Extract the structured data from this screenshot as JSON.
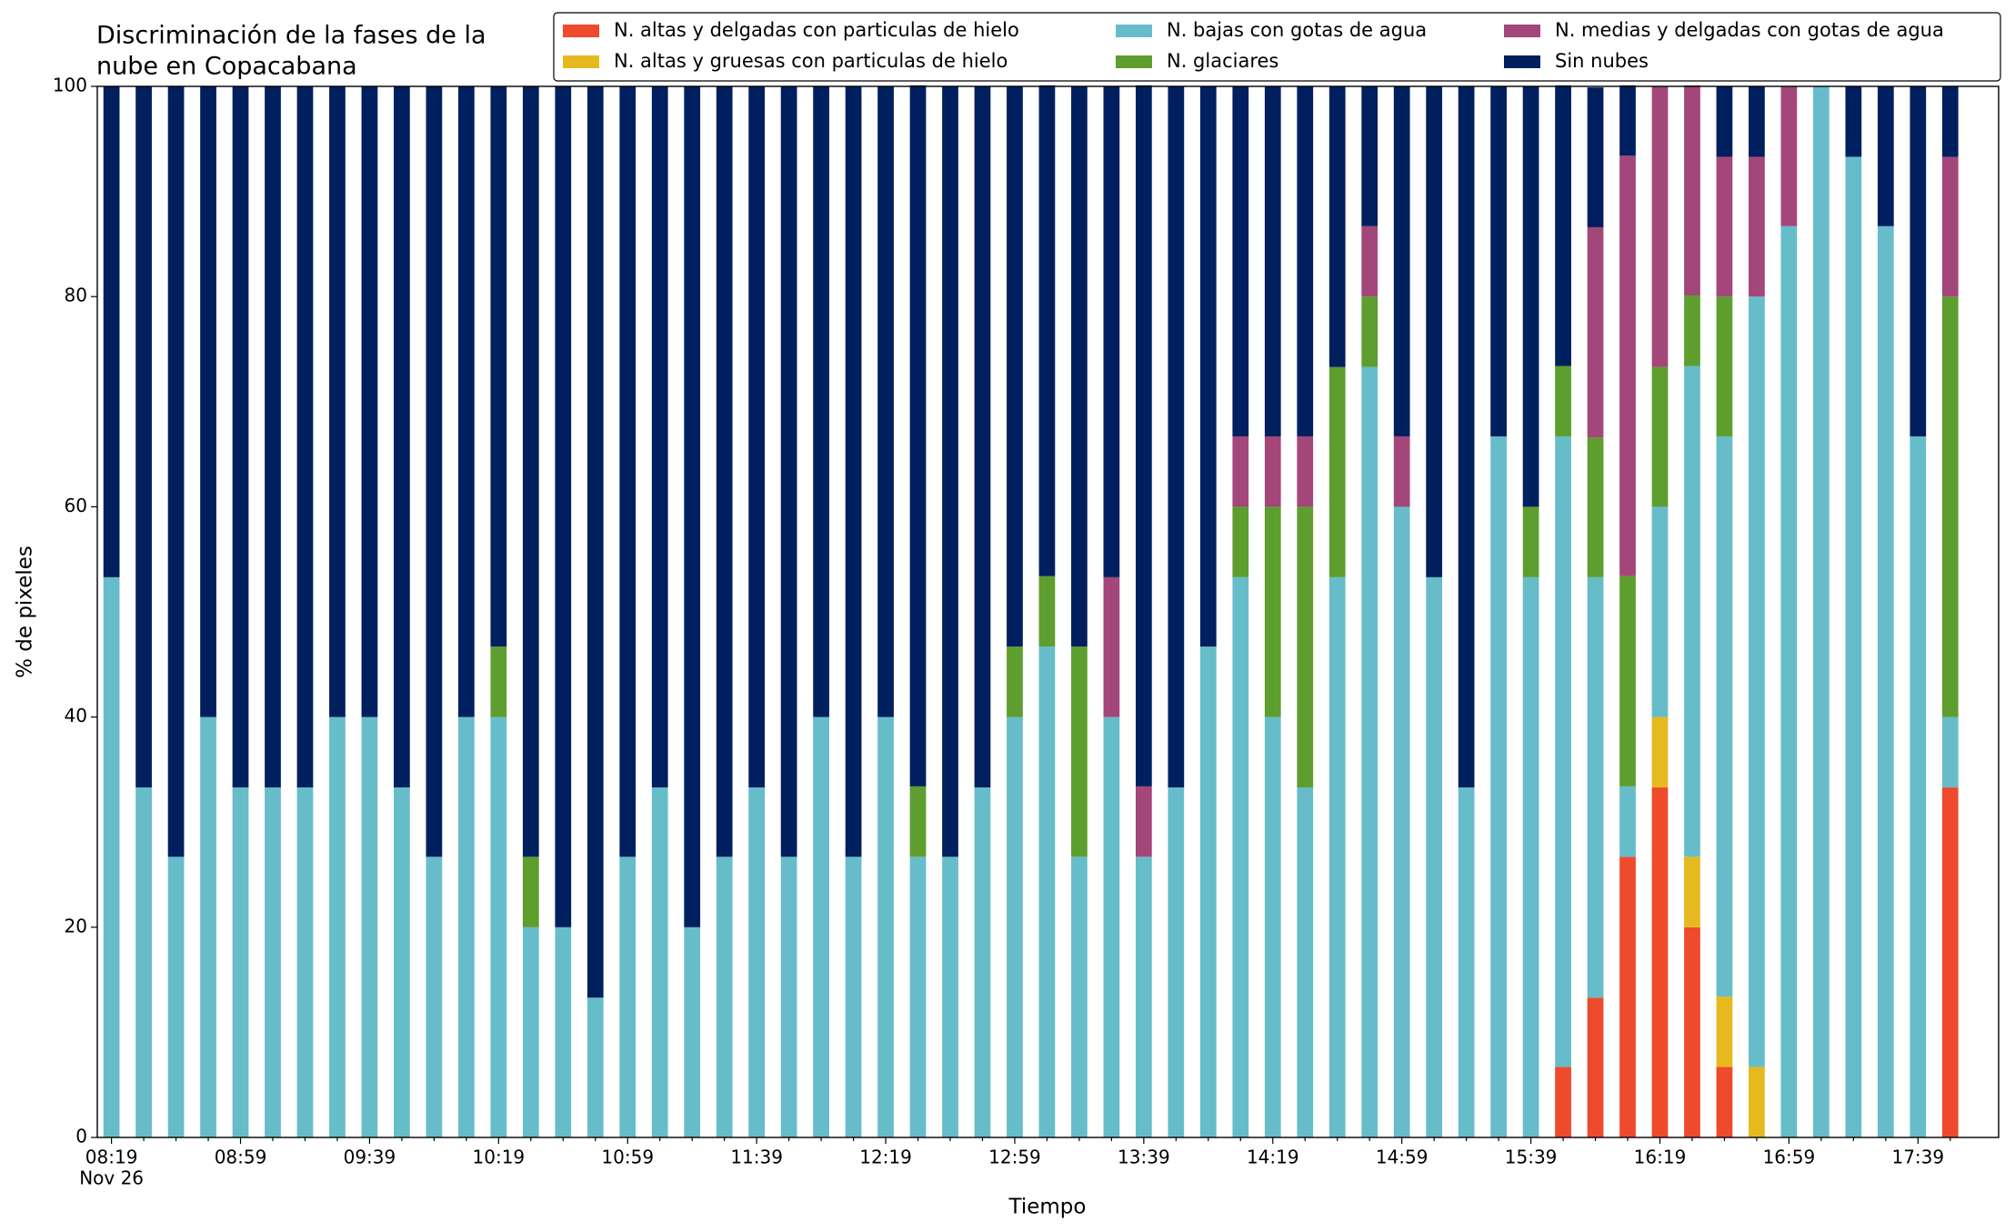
{
  "chart_data": {
    "type": "stacked_bar",
    "title": [
      "Discriminación de la fases de la",
      "nube en Copacabana"
    ],
    "xlabel": "Tiempo",
    "ylabel": "% de pixeles",
    "date_label": "Nov 26",
    "categories": [
      "08:19",
      null,
      null,
      null,
      "08:59",
      null,
      null,
      null,
      "09:39",
      null,
      null,
      null,
      "10:19",
      null,
      null,
      null,
      "10:59",
      null,
      null,
      null,
      "11:39",
      null,
      null,
      null,
      "12:19",
      null,
      null,
      null,
      "12:59",
      null,
      null,
      null,
      "13:39",
      null,
      null,
      null,
      "14:19",
      null,
      null,
      null,
      "14:59",
      null,
      null,
      null,
      "15:39",
      null,
      null,
      null,
      "16:19",
      null,
      null,
      null,
      "16:59",
      null,
      null,
      null,
      "17:39",
      null
    ],
    "ylim": [
      0,
      100
    ],
    "yticks": [
      0,
      20,
      40,
      60,
      80,
      100
    ],
    "grid": false,
    "legend": "top right",
    "series": [
      {
        "name": "N. altas y delgadas con particulas de hielo",
        "color": "#ee4a2c",
        "values": [
          0,
          0,
          0,
          0,
          0,
          0,
          0,
          0,
          0,
          0,
          0,
          0,
          0,
          0,
          0,
          0,
          0,
          0,
          0,
          0,
          0,
          0,
          0,
          0,
          0,
          0,
          0,
          0,
          0,
          0,
          0,
          0,
          0,
          0,
          0,
          0,
          0,
          0,
          0,
          0,
          0,
          0,
          0,
          0,
          0,
          6.7,
          13.3,
          26.7,
          33.3,
          20,
          6.7,
          0,
          0,
          0,
          0,
          0,
          0,
          33.3
        ]
      },
      {
        "name": "N. altas y gruesas con particulas de hielo",
        "color": "#e6b91e",
        "values": [
          0,
          0,
          0,
          0,
          0,
          0,
          0,
          0,
          0,
          0,
          0,
          0,
          0,
          0,
          0,
          0,
          0,
          0,
          0,
          0,
          0,
          0,
          0,
          0,
          0,
          0,
          0,
          0,
          0,
          0,
          0,
          0,
          0,
          0,
          0,
          0,
          0,
          0,
          0,
          0,
          0,
          0,
          0,
          0,
          0,
          0,
          0,
          0,
          6.7,
          6.7,
          6.7,
          6.7,
          0,
          0,
          0,
          0,
          0,
          0
        ]
      },
      {
        "name": "N. bajas con gotas de agua",
        "color": "#66bdc9",
        "values": [
          53.3,
          33.3,
          26.7,
          40,
          33.3,
          33.3,
          33.3,
          40,
          40,
          33.3,
          26.7,
          40,
          40,
          20,
          20,
          13.3,
          26.7,
          33.3,
          20,
          26.7,
          33.3,
          26.7,
          40,
          26.7,
          40,
          26.7,
          26.7,
          33.3,
          40,
          46.7,
          26.7,
          40,
          26.7,
          33.3,
          46.7,
          53.3,
          40,
          33.3,
          53.3,
          73.3,
          60,
          53.3,
          33.3,
          66.7,
          53.3,
          60,
          40,
          6.7,
          20,
          46.7,
          53.3,
          73.3,
          86.7,
          100,
          93.3,
          86.7,
          66.7,
          6.7
        ]
      },
      {
        "name": "N. glaciares",
        "color": "#5d9e2e",
        "values": [
          0,
          0,
          0,
          0,
          0,
          0,
          0,
          0,
          0,
          0,
          0,
          0,
          6.7,
          6.7,
          0,
          0,
          0,
          0,
          0,
          0,
          0,
          0,
          0,
          0,
          0,
          6.7,
          0,
          0,
          6.7,
          6.7,
          20,
          0,
          0,
          0,
          0,
          6.7,
          20,
          26.7,
          20,
          6.7,
          0,
          0,
          0,
          0,
          6.7,
          6.7,
          13.3,
          20,
          13.3,
          6.7,
          13.3,
          0,
          0,
          0,
          0,
          0,
          0,
          40
        ]
      },
      {
        "name": "N. medias y delgadas con gotas de agua",
        "color": "#a3467a",
        "values": [
          0,
          0,
          0,
          0,
          0,
          0,
          0,
          0,
          0,
          0,
          0,
          0,
          0,
          0,
          0,
          0,
          0,
          0,
          0,
          0,
          0,
          0,
          0,
          0,
          0,
          0,
          0,
          0,
          0,
          0,
          0,
          13.3,
          6.7,
          0,
          0,
          6.7,
          6.7,
          6.7,
          0,
          6.7,
          6.7,
          0,
          0,
          0,
          0,
          0,
          20,
          40,
          26.7,
          20,
          13.3,
          13.3,
          13.3,
          0,
          0,
          0,
          0,
          13.3
        ]
      },
      {
        "name": "Sin nubes",
        "color": "#001f5e",
        "values": [
          46.7,
          66.7,
          73.3,
          60,
          66.7,
          66.7,
          66.7,
          60,
          60,
          66.7,
          73.3,
          60,
          53.3,
          73.3,
          80,
          86.7,
          73.3,
          66.7,
          80,
          73.3,
          66.7,
          73.3,
          60,
          73.3,
          60,
          66.7,
          73.3,
          66.7,
          53.3,
          46.7,
          53.3,
          46.7,
          66.7,
          66.7,
          53.3,
          33.3,
          33.3,
          33.3,
          26.7,
          13.3,
          33.3,
          46.7,
          66.7,
          33.3,
          40,
          26.7,
          13.3,
          6.7,
          0,
          0,
          6.7,
          6.7,
          0,
          0,
          6.7,
          13.3,
          33.3,
          6.7
        ]
      }
    ]
  }
}
